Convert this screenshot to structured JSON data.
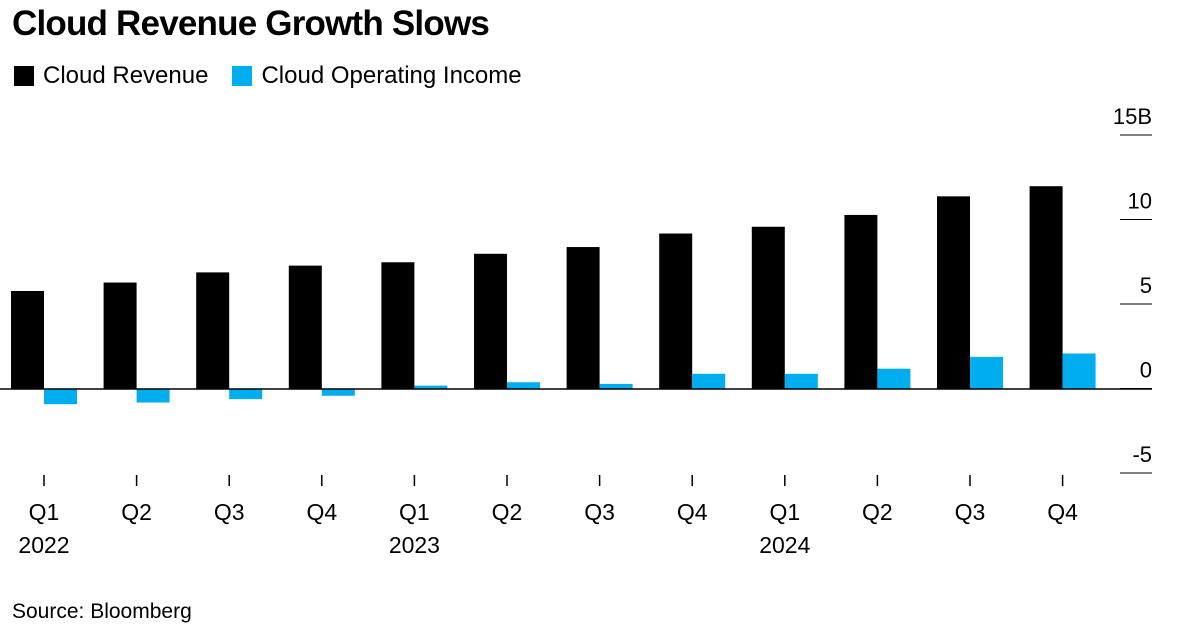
{
  "title": "Cloud Revenue Growth Slows",
  "source": "Source: Bloomberg",
  "colors": {
    "revenue": "#000000",
    "operating_income": "#00adef"
  },
  "chart_data": {
    "type": "bar",
    "title": "Cloud Revenue Growth Slows",
    "xlabel": "",
    "ylabel": "",
    "ylim": [
      -5,
      15
    ],
    "yticks": [
      15,
      10,
      5,
      0,
      -5
    ],
    "ytick_labels": [
      "15B",
      "10",
      "5",
      "0",
      "-5"
    ],
    "categories": [
      "Q1",
      "Q2",
      "Q3",
      "Q4",
      "Q1",
      "Q2",
      "Q3",
      "Q4",
      "Q1",
      "Q2",
      "Q3",
      "Q4"
    ],
    "year_labels": [
      {
        "label": "2022",
        "index": 0
      },
      {
        "label": "2023",
        "index": 4
      },
      {
        "label": "2024",
        "index": 8
      }
    ],
    "legend_position": "top-left",
    "grid": false,
    "series": [
      {
        "name": "Cloud Revenue",
        "color": "#000000",
        "values": [
          5.8,
          6.3,
          6.9,
          7.3,
          7.5,
          8.0,
          8.4,
          9.2,
          9.6,
          10.3,
          11.4,
          12.0
        ]
      },
      {
        "name": "Cloud Operating Income",
        "color": "#00adef",
        "values": [
          -0.9,
          -0.8,
          -0.6,
          -0.4,
          0.2,
          0.4,
          0.3,
          0.9,
          0.9,
          1.2,
          1.9,
          2.1
        ]
      }
    ]
  }
}
